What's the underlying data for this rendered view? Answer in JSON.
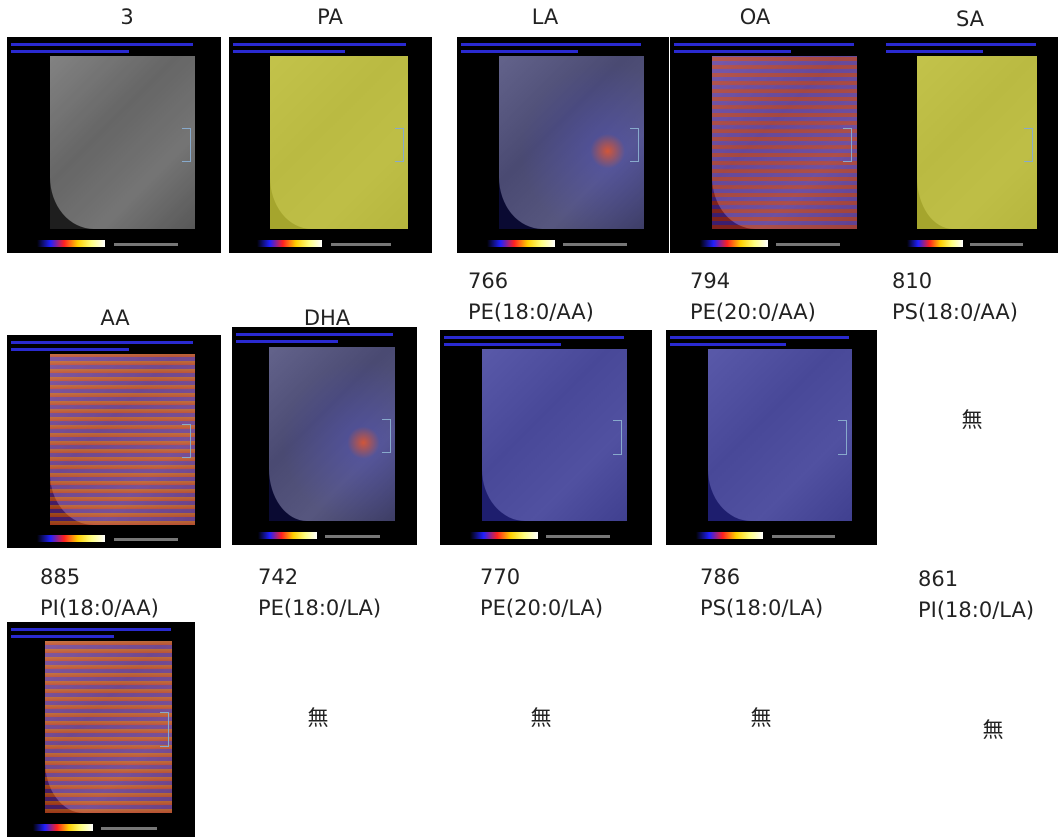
{
  "panels": [
    {
      "label": "3"
    },
    {
      "label": "PA"
    },
    {
      "label": "LA"
    },
    {
      "label": "OA"
    },
    {
      "label": "SA"
    },
    {
      "label": "AA"
    },
    {
      "label": "DHA"
    },
    {
      "mz": "766",
      "label": "PE(18:0/AA)"
    },
    {
      "mz": "794",
      "label": "PE(20:0/AA)"
    },
    {
      "mz": "810",
      "label": "PS(18:0/AA)",
      "absent": "無"
    },
    {
      "mz": "885",
      "label": "PI(18:0/AA)"
    },
    {
      "mz": "742",
      "label": "PE(18:0/LA)",
      "absent": "無"
    },
    {
      "mz": "770",
      "label": "PE(20:0/LA)",
      "absent": "無"
    },
    {
      "mz": "786",
      "label": "PS(18:0/LA)",
      "absent": "無"
    },
    {
      "mz": "861",
      "label": "PI(18:0/LA)",
      "absent": "無"
    }
  ]
}
